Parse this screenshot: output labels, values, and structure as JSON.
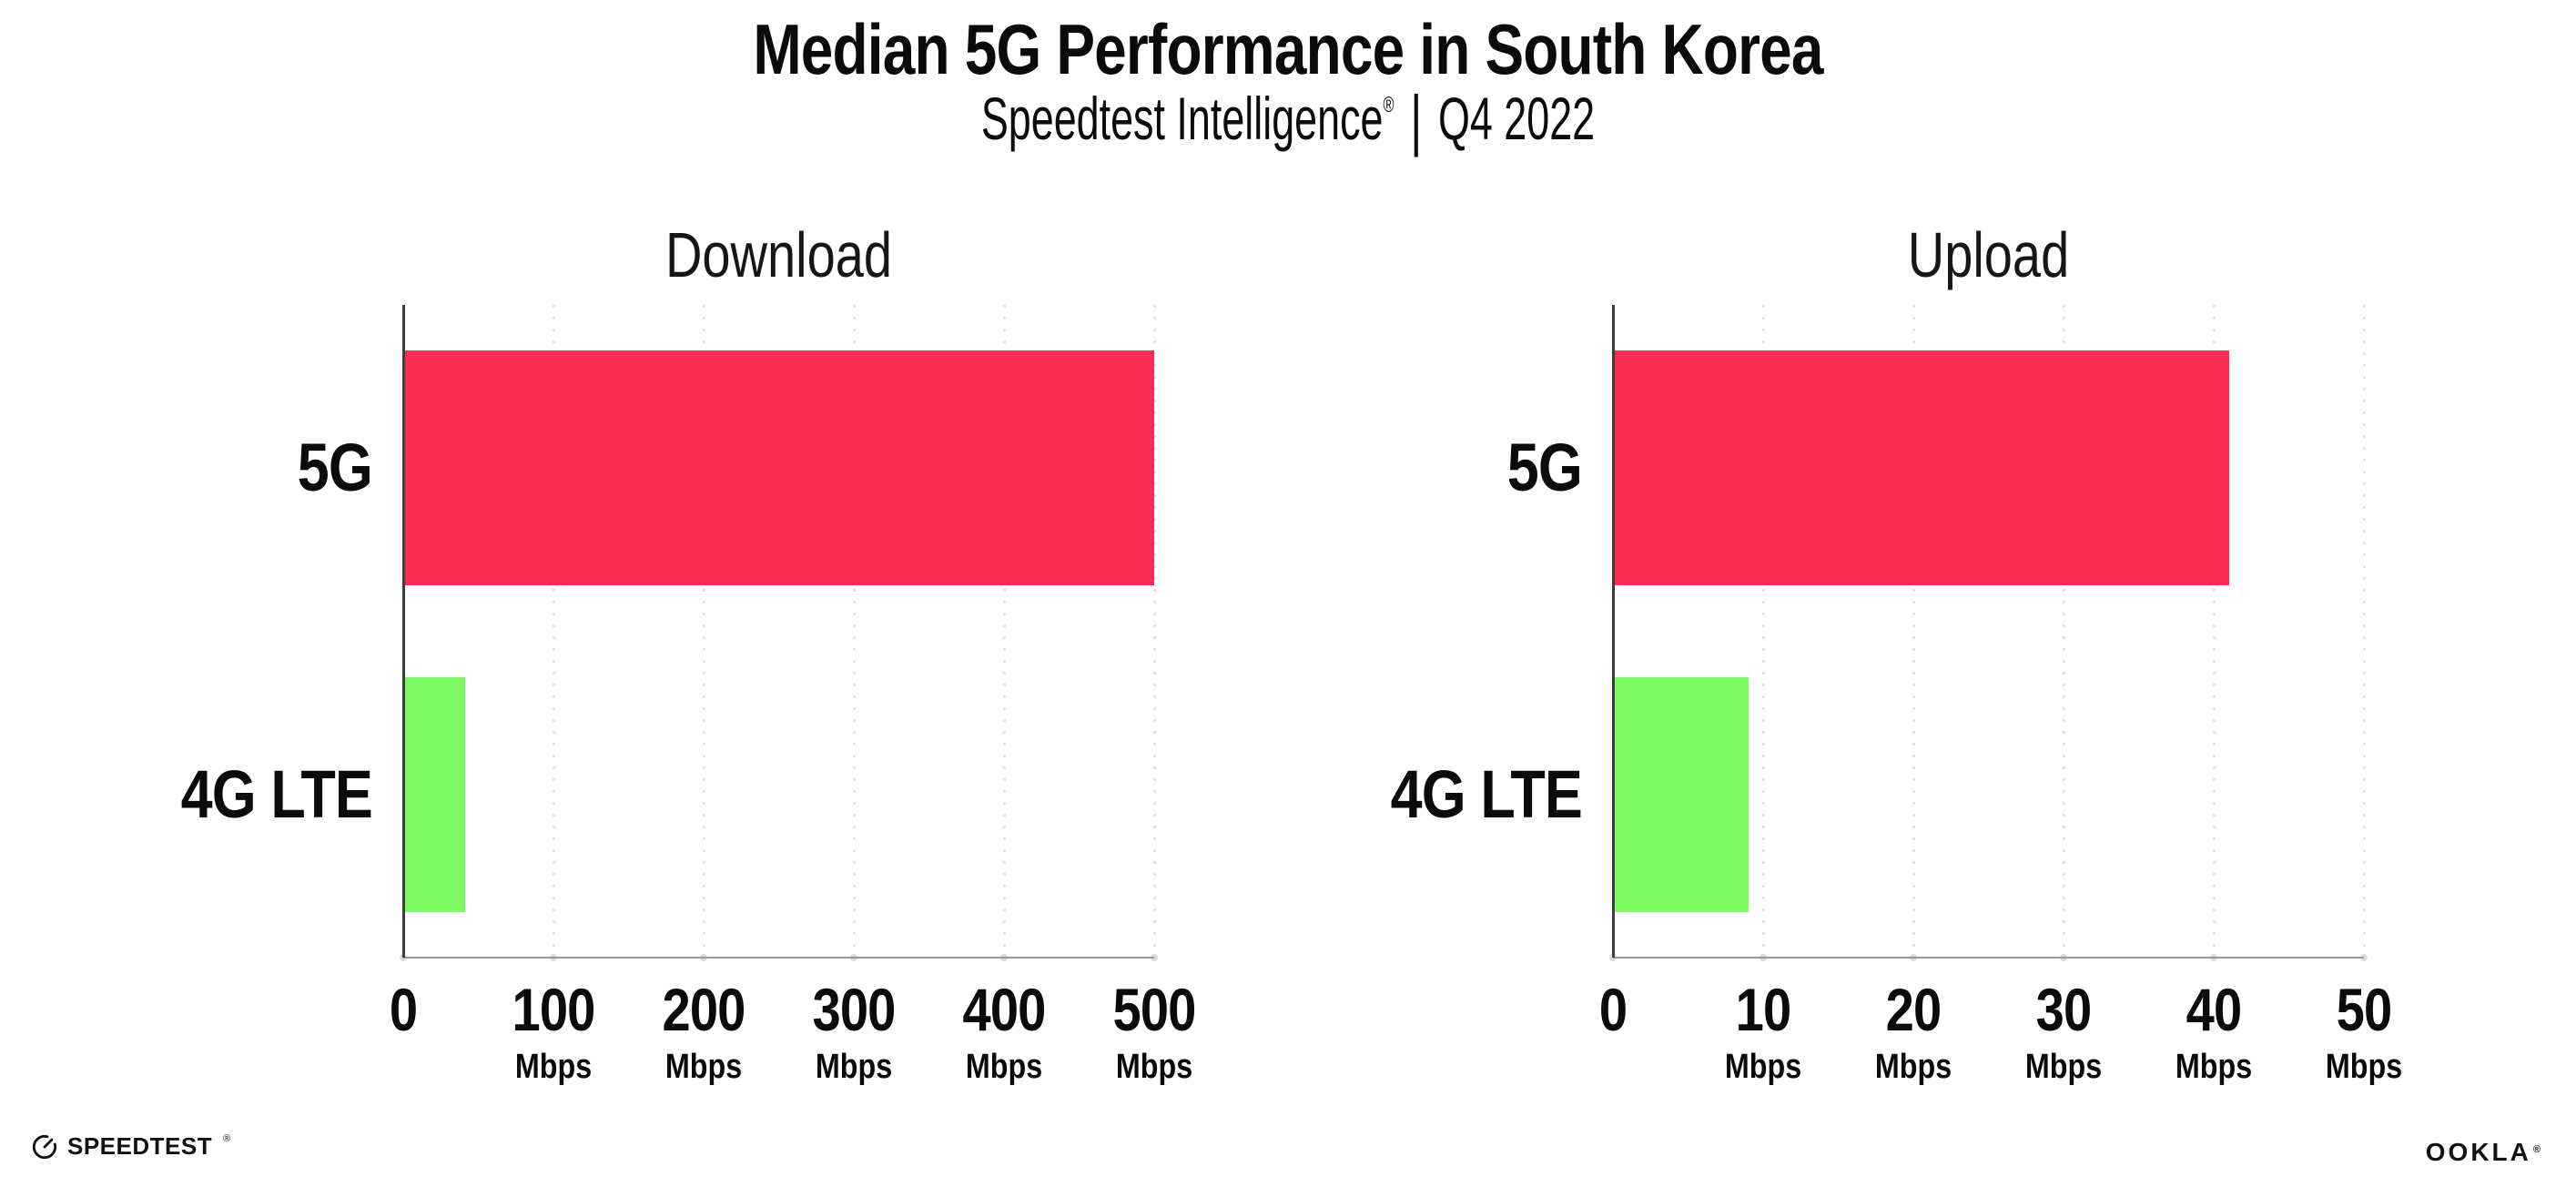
{
  "header": {
    "title": "Median 5G Performance in South Korea",
    "subtitle_brand": "Speedtest Intelligence",
    "subtitle_reg": "®",
    "subtitle_separator": "|",
    "subtitle_period": "Q4 2022"
  },
  "footer": {
    "speedtest_label": "SPEEDTEST",
    "speedtest_reg": "®",
    "ookla_label": "OOKLA",
    "ookla_reg": "®"
  },
  "colors": {
    "bar_5g": "#FC2D55",
    "bar_4g_lte": "#7EFB62",
    "gridline": "#E1E1EB",
    "y_axis": "#3C3C43",
    "x_axis": "#98989E",
    "axis_dot": "#D9D9E3",
    "text": "#0B0B0C"
  },
  "chart_data": [
    {
      "type": "bar",
      "orientation": "horizontal",
      "title": "Download",
      "categories": [
        "5G",
        "4G LTE"
      ],
      "values": [
        500,
        41
      ],
      "bar_colors": [
        "#FC2D55",
        "#7EFB62"
      ],
      "unit": "Mbps",
      "xlim": [
        0,
        500
      ],
      "xticks": [
        0,
        100,
        200,
        300,
        400,
        500
      ],
      "tick_unit_label": "Mbps",
      "grid": "vertical-dotted",
      "legend": "none"
    },
    {
      "type": "bar",
      "orientation": "horizontal",
      "title": "Upload",
      "categories": [
        "5G",
        "4G LTE"
      ],
      "values": [
        41,
        9
      ],
      "bar_colors": [
        "#FC2D55",
        "#7EFB62"
      ],
      "unit": "Mbps",
      "xlim": [
        0,
        50
      ],
      "xticks": [
        0,
        10,
        20,
        30,
        40,
        50
      ],
      "tick_unit_label": "Mbps",
      "grid": "vertical-dotted",
      "legend": "none"
    }
  ]
}
